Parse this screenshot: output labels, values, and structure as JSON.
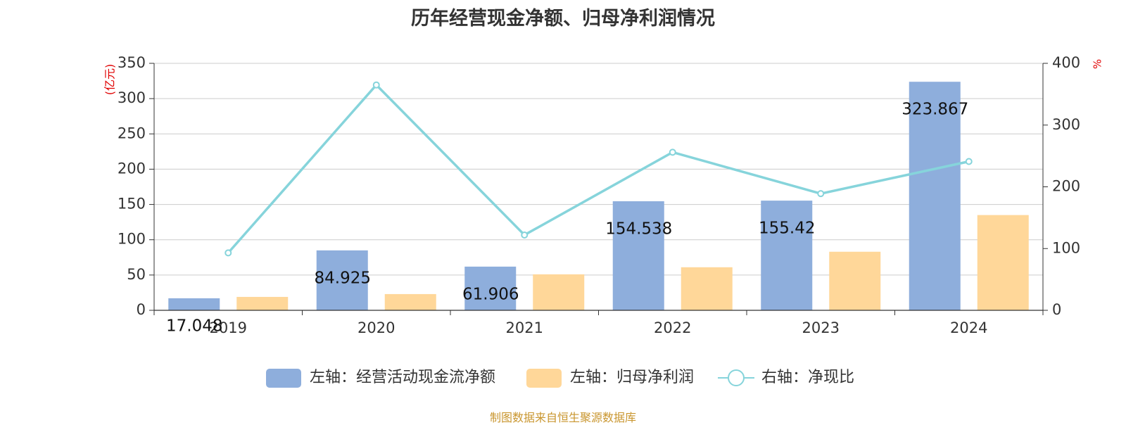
{
  "title": "历年经营现金净额、归母净利润情况",
  "source_note": "制图数据来自恒生聚源数据库",
  "colors": {
    "cash": "#8eaedc",
    "profit": "#ffd799",
    "ratio": "#86d4db",
    "axis_unit": "#e00000",
    "title": "#333333",
    "source": "#c9962f"
  },
  "chart_data": {
    "type": "bar",
    "title": "历年经营现金净额、归母净利润情况",
    "categories": [
      "2019",
      "2020",
      "2021",
      "2022",
      "2023",
      "2024"
    ],
    "left_axis": {
      "label": "(亿元)",
      "ylim": [
        0,
        350
      ],
      "ticks": [
        "0",
        "50",
        "100",
        "150",
        "200",
        "250",
        "300",
        "350"
      ]
    },
    "right_axis": {
      "label": "%",
      "ylim": [
        0,
        400
      ],
      "ticks": [
        "0",
        "100",
        "200",
        "300",
        "400"
      ]
    },
    "grid": true,
    "legend_position": "bottom",
    "series": [
      {
        "name": "左轴：经营活动现金流净额",
        "type": "bar",
        "axis": "left",
        "values": [
          17.048,
          84.925,
          61.906,
          154.538,
          155.42,
          323.867
        ],
        "labels": [
          "17.048",
          "84.925",
          "61.906",
          "154.538",
          "155.42",
          "323.867"
        ]
      },
      {
        "name": "左轴：归母净利润",
        "type": "bar",
        "axis": "left",
        "values": [
          19,
          23,
          51,
          61,
          83,
          135
        ]
      },
      {
        "name": "右轴：净现比",
        "type": "line",
        "axis": "right",
        "values": [
          93,
          365,
          122,
          256,
          189,
          241
        ]
      }
    ]
  }
}
